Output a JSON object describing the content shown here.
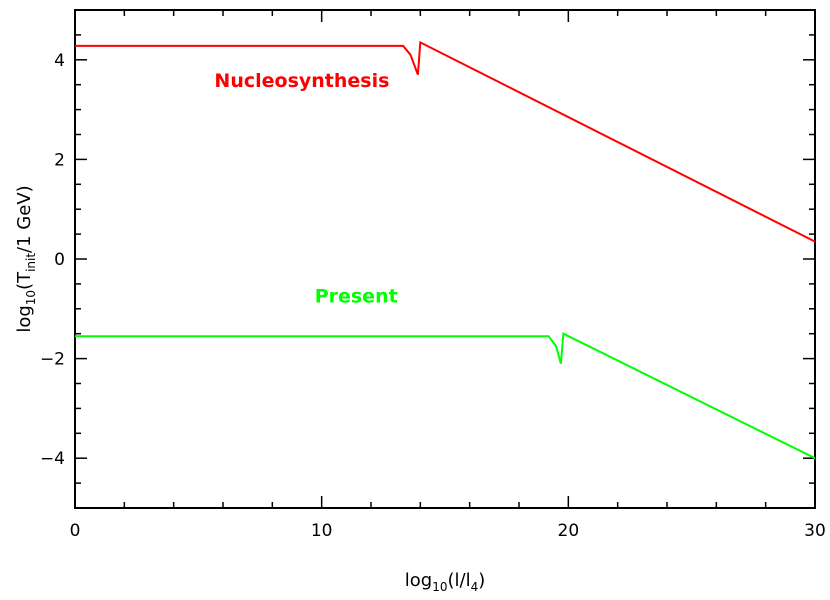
{
  "chart_data": {
    "type": "line",
    "xlabel": {
      "base": "log",
      "sub1": "10",
      "mid": "(l/l",
      "sub2": "4",
      "end": ")"
    },
    "ylabel": {
      "base": "log",
      "sub1": "10",
      "mid": "(T",
      "sub2": "init",
      "end": "/1  GeV)"
    },
    "xlim": [
      0,
      30
    ],
    "ylim": [
      -5,
      5
    ],
    "xticks": [
      0,
      10,
      20,
      30
    ],
    "yticks": [
      -4,
      -2,
      0,
      2,
      4
    ],
    "ytick_labels": [
      "−4",
      "−2",
      "0",
      "2",
      "4"
    ],
    "grid": false,
    "series": [
      {
        "name": "Nucleosynthesis",
        "color": "#ff0000",
        "x": [
          0,
          13.3,
          13.6,
          13.9,
          14.0,
          30
        ],
        "y": [
          4.28,
          4.28,
          4.1,
          3.7,
          4.35,
          0.35
        ]
      },
      {
        "name": "Present",
        "color": "#00ff00",
        "x": [
          0,
          19.2,
          19.5,
          19.7,
          19.8,
          30
        ],
        "y": [
          -1.55,
          -1.55,
          -1.75,
          -2.1,
          -1.5,
          -4.0
        ]
      }
    ],
    "series_labels": [
      {
        "text": "Nucleosynthesis",
        "color": "#ff0000",
        "x": 9.2,
        "y": 3.45
      },
      {
        "text": "Present",
        "color": "#00ff00",
        "x": 11.4,
        "y": -0.87
      }
    ]
  }
}
